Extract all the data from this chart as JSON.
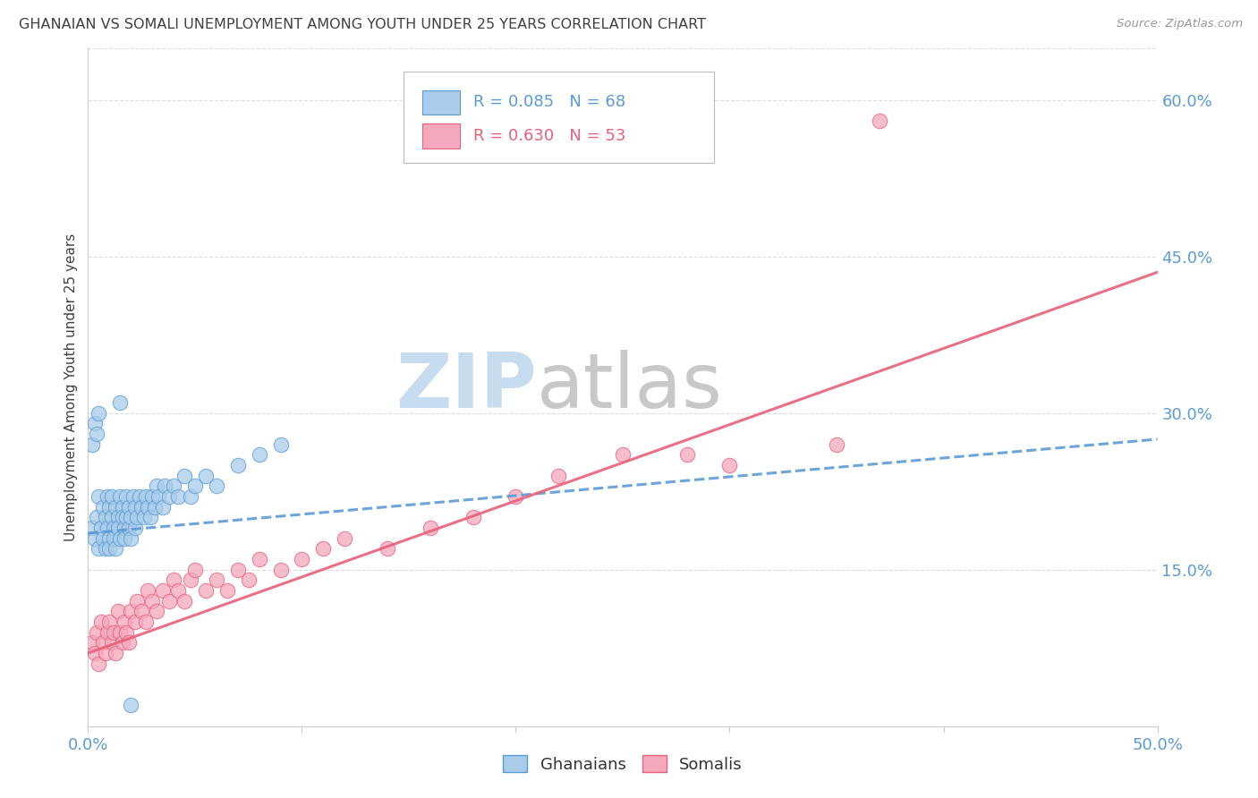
{
  "title": "GHANAIAN VS SOMALI UNEMPLOYMENT AMONG YOUTH UNDER 25 YEARS CORRELATION CHART",
  "source": "Source: ZipAtlas.com",
  "ylabel": "Unemployment Among Youth under 25 years",
  "xlim": [
    0.0,
    0.5
  ],
  "ylim": [
    0.0,
    0.65
  ],
  "x_ticks": [
    0.0,
    0.1,
    0.2,
    0.3,
    0.4,
    0.5
  ],
  "x_tick_labels": [
    "0.0%",
    "",
    "",
    "",
    "",
    "50.0%"
  ],
  "y_ticks_right": [
    0.15,
    0.3,
    0.45,
    0.6
  ],
  "y_tick_labels_right": [
    "15.0%",
    "30.0%",
    "45.0%",
    "60.0%"
  ],
  "ghanaian_color": "#A8CCEA",
  "somali_color": "#F4A8BC",
  "ghanaian_R": 0.085,
  "ghanaian_N": 68,
  "somali_R": 0.63,
  "somali_N": 53,
  "ghanaian_line_color": "#5B9BD5",
  "somali_line_color": "#E8607A",
  "watermark_zip_color": "#C8DCF0",
  "watermark_atlas_color": "#C8C8C8",
  "background_color": "#FFFFFF",
  "grid_color": "#DDDDDD",
  "title_color": "#404040",
  "axis_label_color": "#5B9BD5",
  "ghanaian_x": [
    0.002,
    0.003,
    0.004,
    0.005,
    0.005,
    0.006,
    0.007,
    0.007,
    0.008,
    0.008,
    0.009,
    0.009,
    0.01,
    0.01,
    0.01,
    0.011,
    0.011,
    0.012,
    0.012,
    0.013,
    0.013,
    0.014,
    0.014,
    0.015,
    0.015,
    0.016,
    0.016,
    0.017,
    0.017,
    0.018,
    0.018,
    0.019,
    0.019,
    0.02,
    0.02,
    0.021,
    0.022,
    0.022,
    0.023,
    0.024,
    0.025,
    0.026,
    0.027,
    0.028,
    0.029,
    0.03,
    0.031,
    0.032,
    0.033,
    0.035,
    0.036,
    0.038,
    0.04,
    0.042,
    0.045,
    0.048,
    0.05,
    0.055,
    0.06,
    0.07,
    0.08,
    0.09,
    0.002,
    0.003,
    0.004,
    0.005,
    0.015,
    0.02
  ],
  "ghanaian_y": [
    0.19,
    0.18,
    0.2,
    0.17,
    0.22,
    0.19,
    0.21,
    0.18,
    0.2,
    0.17,
    0.22,
    0.19,
    0.21,
    0.18,
    0.17,
    0.2,
    0.22,
    0.19,
    0.18,
    0.21,
    0.17,
    0.2,
    0.19,
    0.22,
    0.18,
    0.21,
    0.2,
    0.19,
    0.18,
    0.22,
    0.2,
    0.19,
    0.21,
    0.2,
    0.18,
    0.22,
    0.21,
    0.19,
    0.2,
    0.22,
    0.21,
    0.2,
    0.22,
    0.21,
    0.2,
    0.22,
    0.21,
    0.23,
    0.22,
    0.21,
    0.23,
    0.22,
    0.23,
    0.22,
    0.24,
    0.22,
    0.23,
    0.24,
    0.23,
    0.25,
    0.26,
    0.27,
    0.27,
    0.29,
    0.28,
    0.3,
    0.31,
    0.02
  ],
  "somali_x": [
    0.002,
    0.003,
    0.004,
    0.005,
    0.006,
    0.007,
    0.008,
    0.009,
    0.01,
    0.011,
    0.012,
    0.013,
    0.014,
    0.015,
    0.016,
    0.017,
    0.018,
    0.019,
    0.02,
    0.022,
    0.023,
    0.025,
    0.027,
    0.028,
    0.03,
    0.032,
    0.035,
    0.038,
    0.04,
    0.042,
    0.045,
    0.048,
    0.05,
    0.055,
    0.06,
    0.065,
    0.07,
    0.075,
    0.08,
    0.09,
    0.1,
    0.11,
    0.12,
    0.14,
    0.16,
    0.18,
    0.2,
    0.22,
    0.25,
    0.28,
    0.3,
    0.35,
    0.37
  ],
  "somali_y": [
    0.08,
    0.07,
    0.09,
    0.06,
    0.1,
    0.08,
    0.07,
    0.09,
    0.1,
    0.08,
    0.09,
    0.07,
    0.11,
    0.09,
    0.08,
    0.1,
    0.09,
    0.08,
    0.11,
    0.1,
    0.12,
    0.11,
    0.1,
    0.13,
    0.12,
    0.11,
    0.13,
    0.12,
    0.14,
    0.13,
    0.12,
    0.14,
    0.15,
    0.13,
    0.14,
    0.13,
    0.15,
    0.14,
    0.16,
    0.15,
    0.16,
    0.17,
    0.18,
    0.17,
    0.19,
    0.2,
    0.22,
    0.24,
    0.26,
    0.26,
    0.25,
    0.27,
    0.58
  ],
  "ghanaian_trend_x": [
    0.0,
    0.5
  ],
  "ghanaian_trend_y": [
    0.185,
    0.275
  ],
  "somali_trend_x": [
    0.0,
    0.5
  ],
  "somali_trend_y": [
    0.07,
    0.435
  ]
}
